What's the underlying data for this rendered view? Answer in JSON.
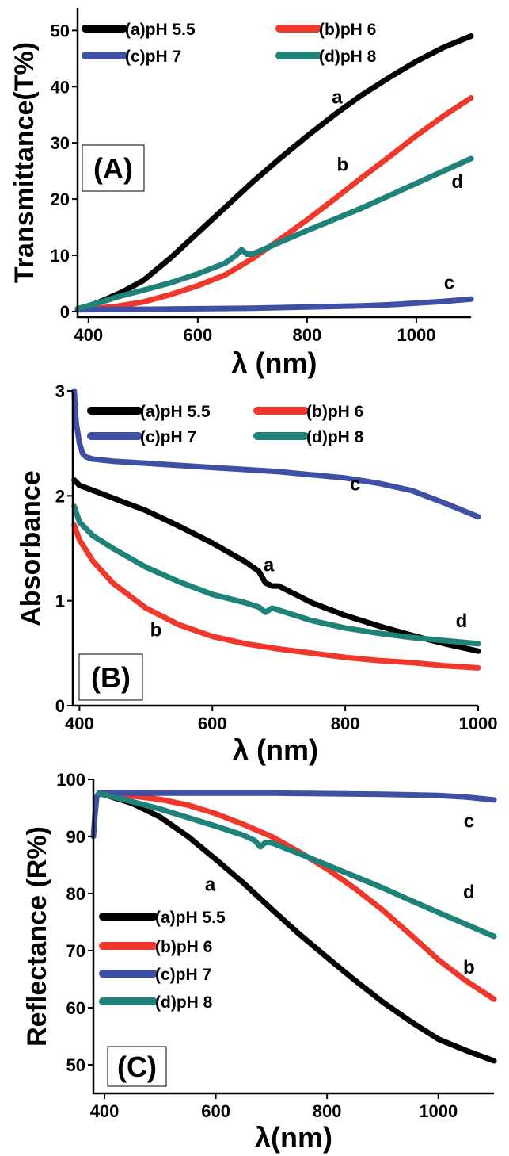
{
  "chart_data": [
    {
      "type": "line",
      "panel_label": "(A)",
      "xlabel": "λ (nm)",
      "ylabel": "Transmittance(T%)",
      "xlim": [
        380,
        1100
      ],
      "ylim": [
        -1,
        54
      ],
      "xticks": [
        400,
        600,
        800,
        1000
      ],
      "yticks": [
        0,
        10,
        20,
        30,
        40,
        50
      ],
      "legend": "top, two columns",
      "colors": {
        "a": "#000000",
        "b": "#f0372c",
        "c": "#3f4fa3",
        "d": "#1f8278"
      },
      "series": [
        {
          "key": "a",
          "name": "(a)pH 5.5",
          "x": [
            380,
            420,
            460,
            500,
            550,
            600,
            650,
            700,
            750,
            800,
            850,
            900,
            950,
            1000,
            1050,
            1100
          ],
          "y": [
            0.3,
            1.7,
            3.4,
            5.5,
            9.5,
            14,
            18.5,
            23,
            27.2,
            31.2,
            35,
            38.5,
            41.6,
            44.5,
            47,
            49
          ]
        },
        {
          "key": "b",
          "name": "(b)pH 6",
          "x": [
            380,
            450,
            500,
            550,
            600,
            650,
            700,
            750,
            800,
            850,
            900,
            950,
            1000,
            1050,
            1100
          ],
          "y": [
            0.3,
            0.9,
            1.7,
            3,
            4.6,
            6.5,
            9.4,
            12.8,
            16.3,
            20,
            23.8,
            27.5,
            31.3,
            34.8,
            38
          ]
        },
        {
          "key": "c",
          "name": "(c)pH 7",
          "x": [
            380,
            450,
            500,
            600,
            700,
            800,
            900,
            950,
            1000,
            1050,
            1100
          ],
          "y": [
            0.3,
            0.4,
            0.4,
            0.5,
            0.6,
            0.8,
            1,
            1.2,
            1.5,
            1.8,
            2.2
          ]
        },
        {
          "key": "d",
          "name": "(d)pH 8",
          "x": [
            380,
            420,
            460,
            500,
            550,
            600,
            650,
            670,
            680,
            690,
            700,
            750,
            800,
            850,
            900,
            950,
            1000,
            1050,
            1100
          ],
          "y": [
            0.5,
            1.6,
            2.8,
            3.8,
            5.1,
            6.7,
            8.6,
            10,
            11,
            10.2,
            10.2,
            12.3,
            14.4,
            16.4,
            18.4,
            20.6,
            22.8,
            25,
            27.2
          ]
        }
      ],
      "annotations": [
        {
          "text": "a",
          "x": 855,
          "y": 37
        },
        {
          "text": "b",
          "x": 865,
          "y": 25
        },
        {
          "text": "c",
          "x": 1060,
          "y": 4
        },
        {
          "text": "d",
          "x": 1075,
          "y": 22
        }
      ]
    },
    {
      "type": "line",
      "panel_label": "(B)",
      "xlabel": "λ (nm)",
      "ylabel": "Absorbance",
      "xlim": [
        390,
        1000
      ],
      "ylim": [
        0,
        3
      ],
      "xticks": [
        400,
        600,
        800,
        1000
      ],
      "yticks": [
        0,
        1,
        2,
        3
      ],
      "legend": "top, two columns",
      "colors": {
        "a": "#000000",
        "b": "#f0372c",
        "c": "#3f4fa3",
        "d": "#1f8278"
      },
      "series": [
        {
          "key": "a",
          "name": "(a)pH 5.5",
          "x": [
            392,
            400,
            450,
            500,
            550,
            600,
            650,
            670,
            680,
            690,
            700,
            750,
            800,
            850,
            900,
            950,
            1000
          ],
          "y": [
            2.15,
            2.1,
            1.98,
            1.86,
            1.71,
            1.55,
            1.37,
            1.28,
            1.17,
            1.14,
            1.14,
            0.98,
            0.86,
            0.76,
            0.67,
            0.59,
            0.52
          ]
        },
        {
          "key": "b",
          "name": "(b)pH 6",
          "x": [
            392,
            400,
            420,
            450,
            500,
            550,
            600,
            650,
            700,
            750,
            800,
            850,
            900,
            950,
            1000
          ],
          "y": [
            1.72,
            1.58,
            1.38,
            1.17,
            0.93,
            0.77,
            0.66,
            0.59,
            0.54,
            0.5,
            0.46,
            0.43,
            0.41,
            0.38,
            0.36
          ]
        },
        {
          "key": "c",
          "name": "(c)pH 7",
          "x": [
            392,
            395,
            400,
            405,
            410,
            420,
            450,
            500,
            550,
            600,
            650,
            700,
            750,
            800,
            850,
            900,
            950,
            1000
          ],
          "y": [
            3.0,
            2.7,
            2.5,
            2.4,
            2.37,
            2.35,
            2.33,
            2.31,
            2.29,
            2.27,
            2.25,
            2.23,
            2.2,
            2.17,
            2.12,
            2.05,
            1.93,
            1.8
          ]
        },
        {
          "key": "d",
          "name": "(d)pH 8",
          "x": [
            392,
            400,
            420,
            450,
            500,
            550,
            600,
            650,
            670,
            680,
            690,
            700,
            750,
            800,
            850,
            900,
            950,
            1000
          ],
          "y": [
            1.9,
            1.75,
            1.62,
            1.5,
            1.32,
            1.18,
            1.06,
            0.98,
            0.94,
            0.89,
            0.93,
            0.91,
            0.81,
            0.74,
            0.69,
            0.65,
            0.62,
            0.59
          ]
        }
      ],
      "annotations": [
        {
          "text": "a",
          "x": 685,
          "y": 1.28
        },
        {
          "text": "b",
          "x": 515,
          "y": 0.66
        },
        {
          "text": "c",
          "x": 815,
          "y": 2.05
        },
        {
          "text": "d",
          "x": 975,
          "y": 0.75
        }
      ]
    },
    {
      "type": "line",
      "panel_label": "(C)",
      "xlabel": "λ(nm)",
      "ylabel": "Reflectance (R%)",
      "xlim": [
        380,
        1100
      ],
      "ylim": [
        45,
        100
      ],
      "xticks": [
        400,
        600,
        800,
        1000
      ],
      "yticks": [
        50,
        60,
        70,
        80,
        90,
        100
      ],
      "legend": "left, single column",
      "colors": {
        "a": "#000000",
        "b": "#f0372c",
        "c": "#3f4fa3",
        "d": "#1f8278"
      },
      "series": [
        {
          "key": "a",
          "name": "(a)pH 5.5",
          "x": [
            390,
            400,
            450,
            500,
            550,
            600,
            650,
            700,
            750,
            800,
            850,
            900,
            950,
            1000,
            1050,
            1100
          ],
          "y": [
            97.5,
            97.3,
            95.8,
            93.4,
            90,
            86,
            81.8,
            77.3,
            72.9,
            68.8,
            64.8,
            61,
            57.6,
            54.5,
            52.5,
            50.7
          ]
        },
        {
          "key": "b",
          "name": "(b)pH 6",
          "x": [
            390,
            400,
            450,
            500,
            550,
            600,
            650,
            700,
            750,
            800,
            850,
            900,
            950,
            1000,
            1050,
            1100
          ],
          "y": [
            97.5,
            97.5,
            97.1,
            96.5,
            95.5,
            94,
            92.1,
            90,
            87.3,
            84.3,
            80.9,
            77.1,
            72.8,
            68.4,
            64.7,
            61.5
          ]
        },
        {
          "key": "c",
          "name": "(c)pH 7",
          "x": [
            380,
            383,
            386,
            390,
            400,
            500,
            600,
            700,
            800,
            900,
            1000,
            1050,
            1100
          ],
          "y": [
            90,
            94,
            97,
            97.6,
            97.6,
            97.6,
            97.6,
            97.6,
            97.5,
            97.4,
            97.2,
            96.9,
            96.4
          ]
        },
        {
          "key": "d",
          "name": "(d)pH 8",
          "x": [
            390,
            400,
            450,
            500,
            550,
            600,
            650,
            670,
            680,
            690,
            700,
            750,
            800,
            850,
            900,
            950,
            1000,
            1050,
            1100
          ],
          "y": [
            97.5,
            97.3,
            96.1,
            94.8,
            93.3,
            91.8,
            90.2,
            89.3,
            88.2,
            89,
            88.9,
            87,
            85,
            83,
            81,
            78.8,
            76.7,
            74.6,
            72.5
          ]
        }
      ],
      "annotations": [
        {
          "text": "a",
          "x": 590,
          "y": 80.5
        },
        {
          "text": "b",
          "x": 1055,
          "y": 66
        },
        {
          "text": "c",
          "x": 1055,
          "y": 91.6
        },
        {
          "text": "d",
          "x": 1055,
          "y": 79.2
        }
      ]
    }
  ]
}
